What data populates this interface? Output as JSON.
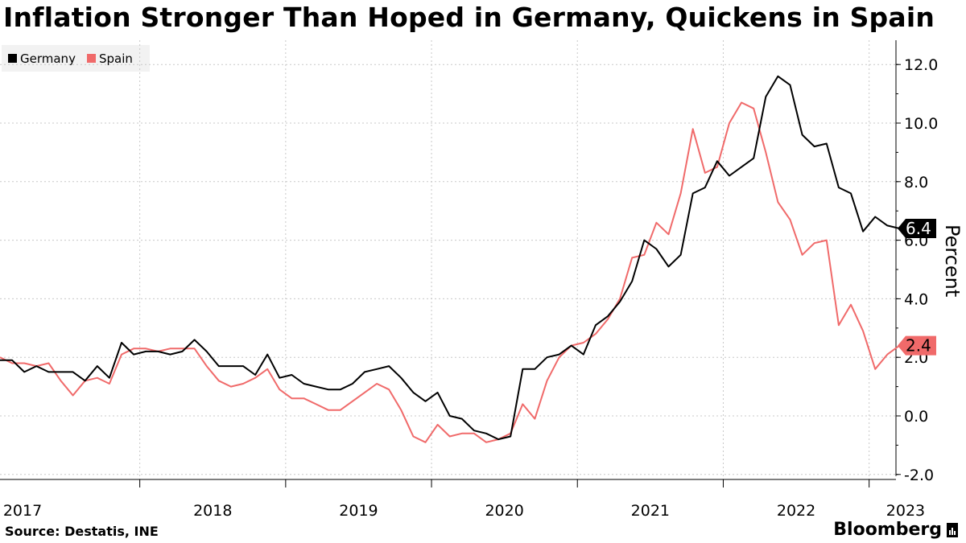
{
  "title": "Inflation Stronger Than Hoped in Germany, Quickens in Spain",
  "source": "Source:  Destatis, INE",
  "brand": "Bloomberg",
  "colors": {
    "germany": "#000000",
    "spain": "#f06a6a",
    "grid": "#c8c8c8"
  },
  "chart_data": {
    "type": "line",
    "ylabel": "Percent",
    "ylim": [
      -2,
      12
    ],
    "yticks": [
      "-2.0",
      "0.0",
      "2.0",
      "4.0",
      "6.0",
      "8.0",
      "10.0",
      "12.0"
    ],
    "x_start": "2017-01",
    "xtick_labels": [
      "2017",
      "2018",
      "2019",
      "2020",
      "2021",
      "2022",
      "2023"
    ],
    "legend": "top-left",
    "series": [
      {
        "name": "Germany",
        "last_label": "6.4",
        "values": [
          1.9,
          1.9,
          1.5,
          1.7,
          1.5,
          1.5,
          1.5,
          1.2,
          1.7,
          1.3,
          2.5,
          2.1,
          2.2,
          2.2,
          2.1,
          2.2,
          2.6,
          2.2,
          1.7,
          1.7,
          1.7,
          1.4,
          2.1,
          1.3,
          1.4,
          1.1,
          1.0,
          0.9,
          0.9,
          1.1,
          1.5,
          1.6,
          1.7,
          1.3,
          0.8,
          0.5,
          0.8,
          0.0,
          -0.1,
          -0.5,
          -0.6,
          -0.8,
          -0.7,
          1.6,
          1.6,
          2.0,
          2.1,
          2.4,
          2.1,
          3.1,
          3.4,
          3.9,
          4.6,
          6.0,
          5.7,
          5.1,
          5.5,
          7.6,
          7.8,
          8.7,
          8.2,
          8.5,
          8.8,
          10.9,
          11.6,
          11.3,
          9.6,
          9.2,
          9.3,
          7.8,
          7.6,
          6.3,
          6.8,
          6.5,
          6.4
        ]
      },
      {
        "name": "Spain",
        "last_label": "2.4",
        "values": [
          2.0,
          1.8,
          1.8,
          1.7,
          1.8,
          1.2,
          0.7,
          1.2,
          1.3,
          1.1,
          2.1,
          2.3,
          2.3,
          2.2,
          2.3,
          2.3,
          2.3,
          1.7,
          1.2,
          1.0,
          1.1,
          1.3,
          1.6,
          0.9,
          0.6,
          0.6,
          0.4,
          0.2,
          0.2,
          0.5,
          0.8,
          1.1,
          0.9,
          0.2,
          -0.7,
          -0.9,
          -0.3,
          -0.7,
          -0.6,
          -0.6,
          -0.9,
          -0.8,
          -0.6,
          0.4,
          -0.1,
          1.2,
          2.0,
          2.4,
          2.5,
          2.8,
          3.3,
          4.0,
          5.4,
          5.5,
          6.6,
          6.2,
          7.6,
          9.8,
          8.3,
          8.5,
          10.0,
          10.7,
          10.5,
          9.0,
          7.3,
          6.7,
          5.5,
          5.9,
          6.0,
          3.1,
          3.8,
          2.9,
          1.6,
          2.1,
          2.4
        ]
      }
    ]
  }
}
